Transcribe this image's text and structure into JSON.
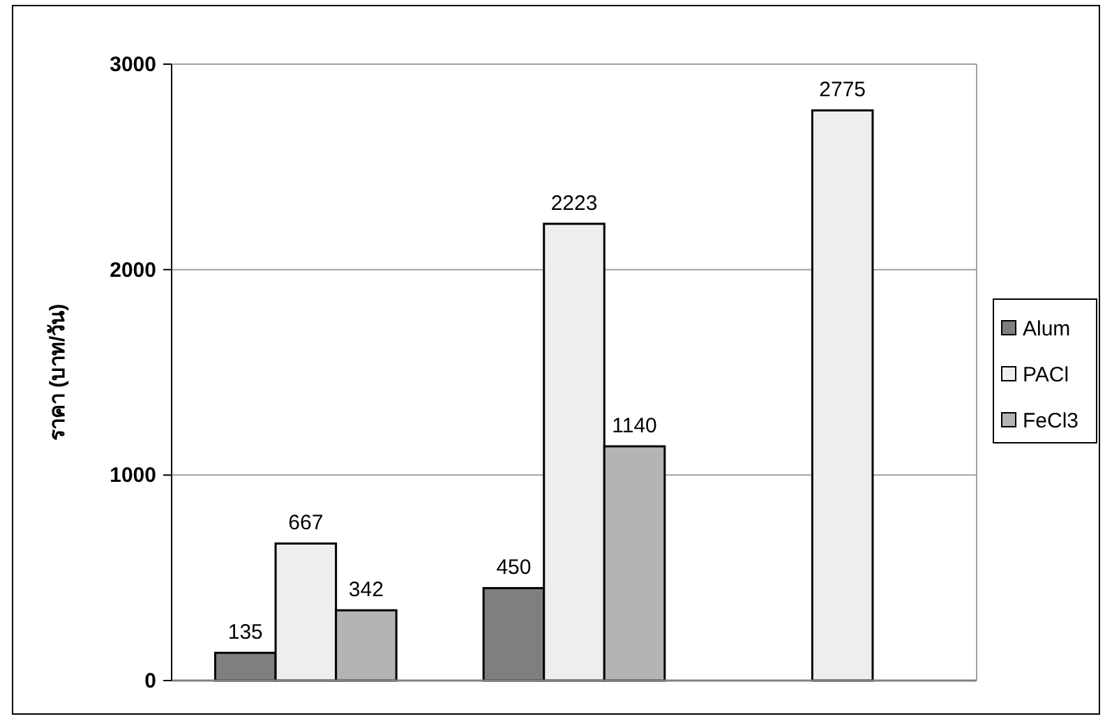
{
  "chart_data": {
    "type": "bar",
    "ylabel": "ราคา (บาท/วัน)",
    "categories": [
      null,
      null,
      null
    ],
    "series": [
      {
        "name": "Alum",
        "color": "#7f7f7f",
        "values": [
          135,
          450,
          null
        ]
      },
      {
        "name": "PACl",
        "color": "#eeeeee",
        "values": [
          667,
          2223,
          2775
        ]
      },
      {
        "name": "FeCl3",
        "color": "#b4b4b4",
        "values": [
          342,
          1140,
          null
        ]
      }
    ],
    "ylim": [
      0,
      3000
    ],
    "yticks": [
      0,
      1000,
      2000,
      3000
    ],
    "grid": "y",
    "legend": "right",
    "data_labels": true,
    "tick_labels": "y"
  }
}
